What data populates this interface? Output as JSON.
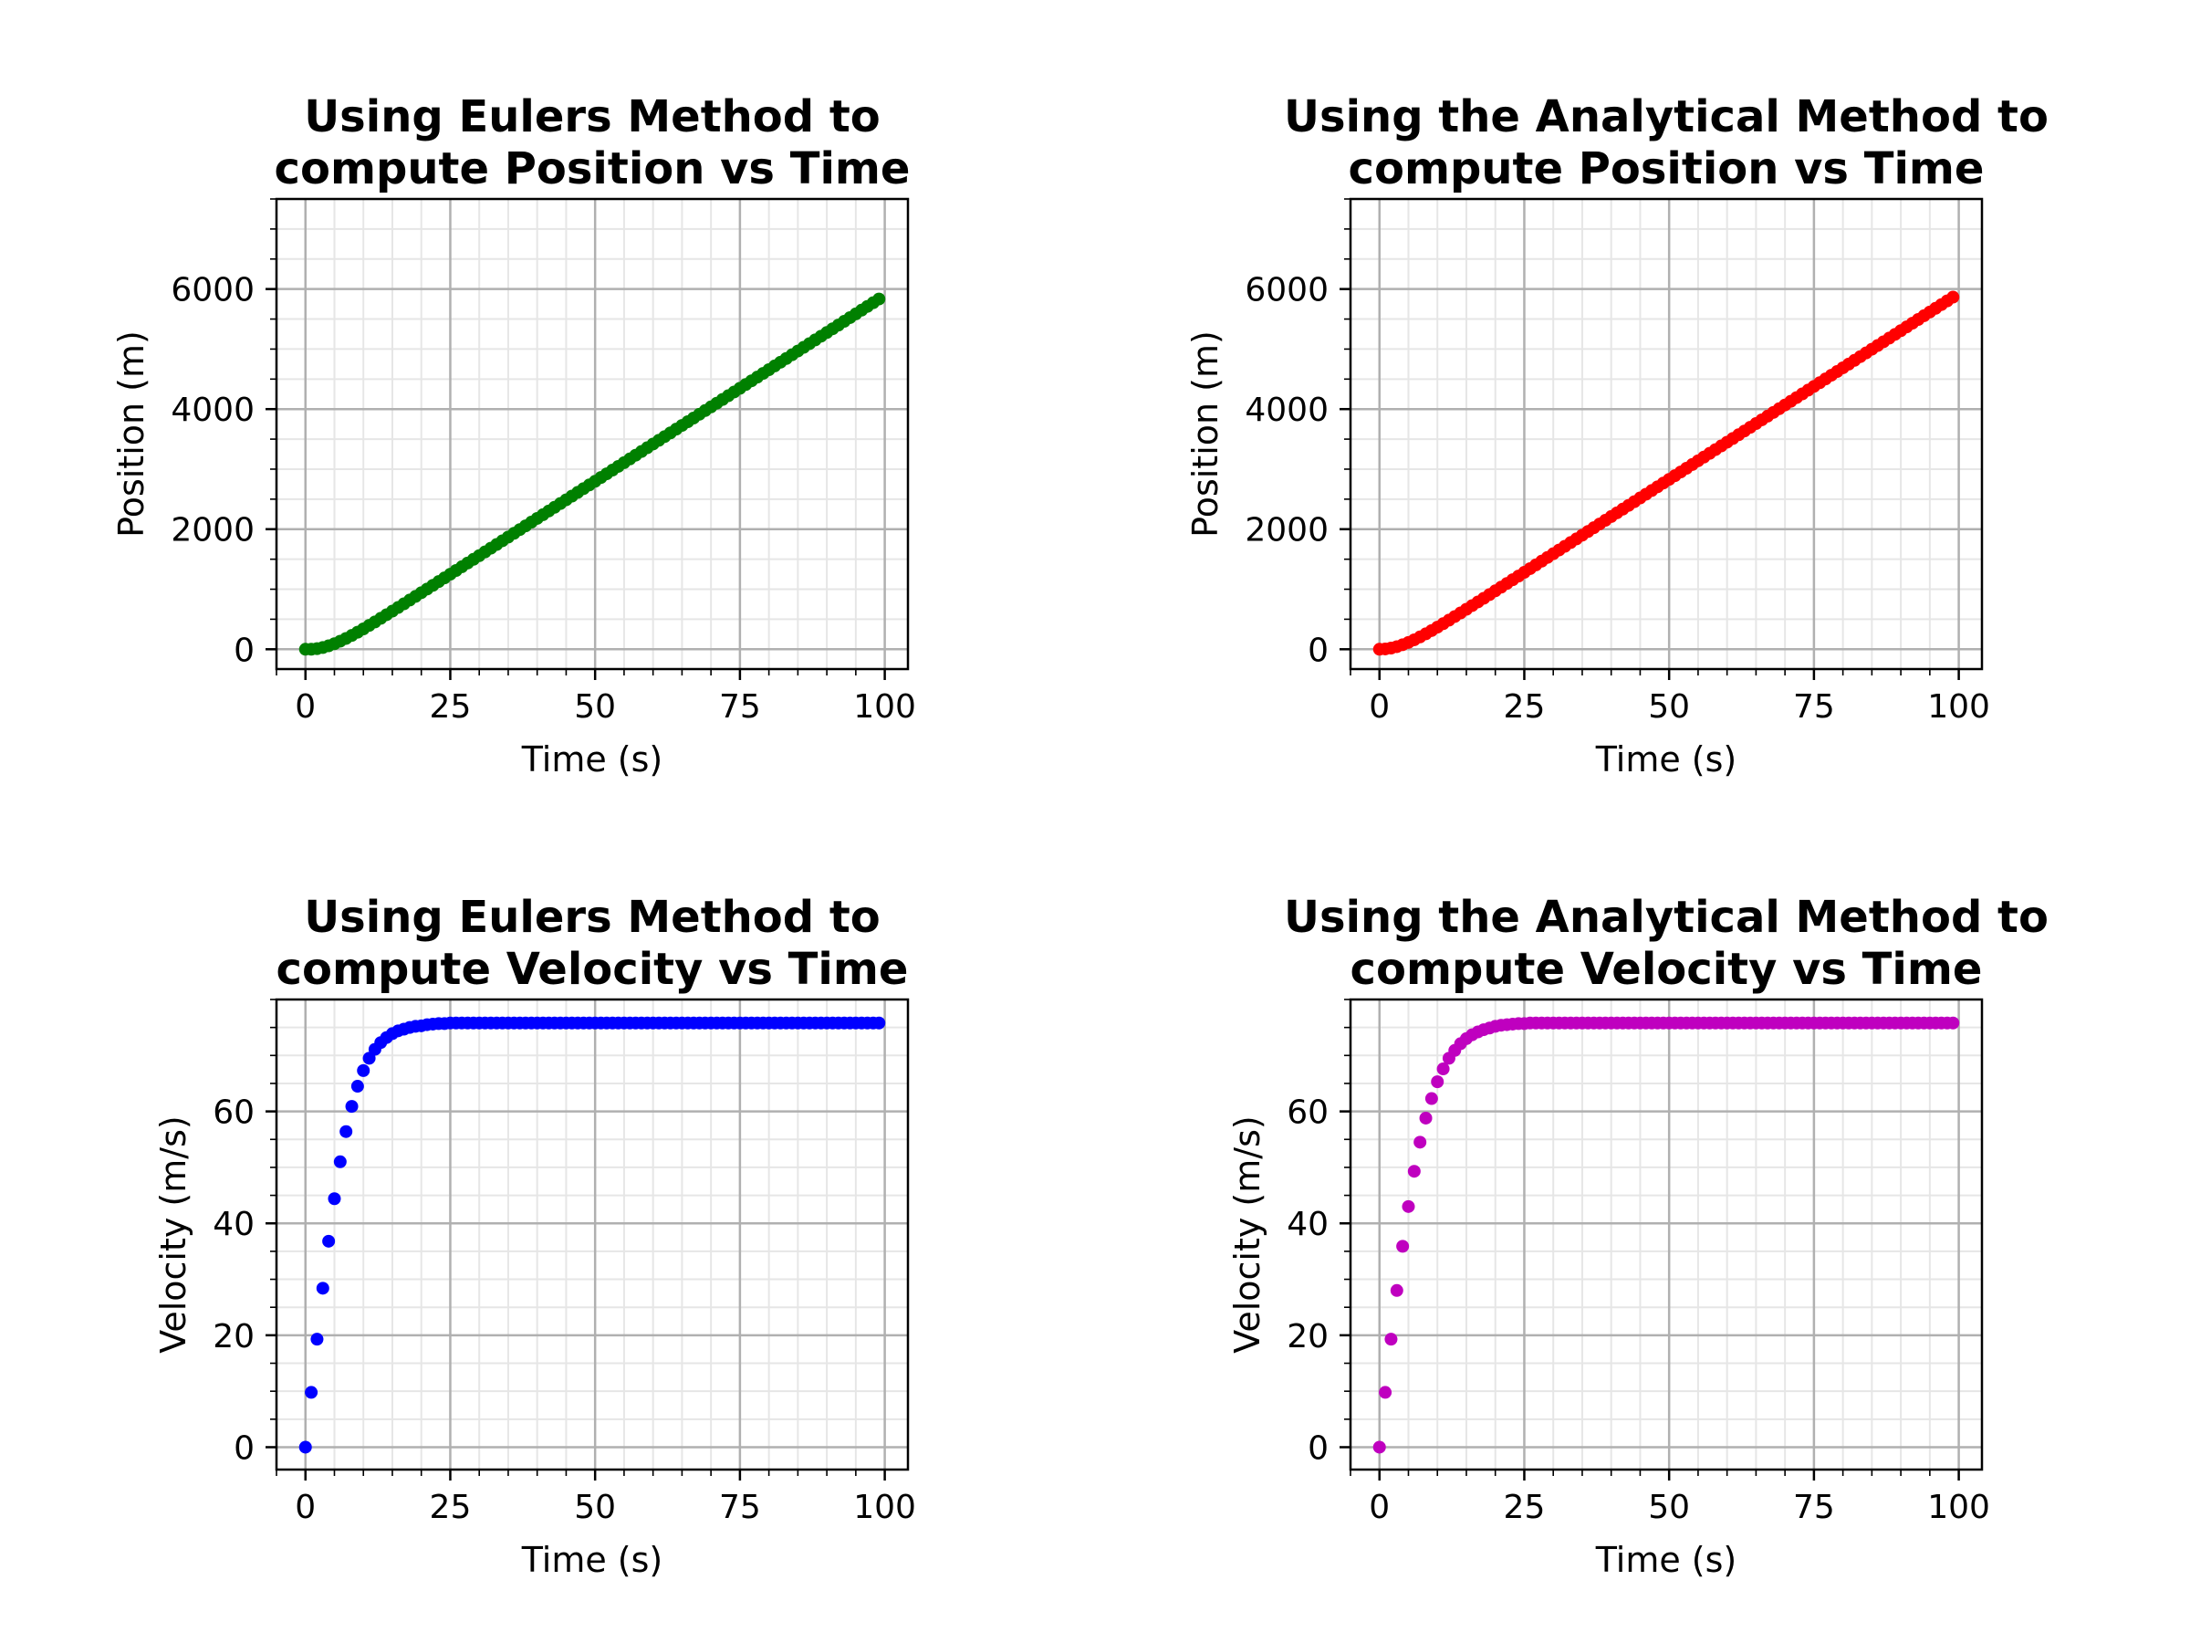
{
  "chart_data": [
    {
      "id": "euler-position",
      "type": "scatter",
      "title": [
        "Using Eulers Method to",
        "compute Position vs Time"
      ],
      "xlabel": "Time (s)",
      "ylabel": "Position (m)",
      "xlim": [
        -5,
        104
      ],
      "ylim": [
        -330,
        7500
      ],
      "xticks": [
        0,
        25,
        50,
        75,
        100
      ],
      "yticks": [
        0,
        2000,
        4000,
        6000
      ],
      "x_minor_step": 5,
      "y_minor_step": 500,
      "grid": true,
      "legend": "none",
      "color": "#008000",
      "x_range": [
        0,
        99
      ],
      "x_step": 1,
      "y_values": [
        0,
        0,
        10,
        29,
        57,
        92,
        134,
        180,
        230,
        284,
        339,
        397,
        455,
        515,
        575,
        635,
        696,
        757,
        819,
        880,
        942,
        1003,
        1065,
        1127,
        1188,
        1250,
        1312,
        1374,
        1436,
        1498,
        1559,
        1621,
        1683,
        1745,
        1807,
        1869,
        1931,
        1993,
        2055,
        2117,
        2179,
        2241,
        2303,
        2365,
        2427,
        2489,
        2551,
        2613,
        2675,
        2737,
        2798,
        2860,
        2922,
        2984,
        3046,
        3108,
        3170,
        3232,
        3294,
        3356,
        3418,
        3480,
        3542,
        3604,
        3666,
        3728,
        3790,
        3852,
        3914,
        3976,
        4037,
        4099,
        4161,
        4223,
        4285,
        4347,
        4409,
        4471,
        4533,
        4595,
        4657,
        4719,
        4781,
        4843,
        4905,
        4967,
        5029,
        5091,
        5153,
        5214,
        5276,
        5338,
        5400,
        5462,
        5524,
        5586,
        5648,
        5710,
        5772,
        5834
      ]
    },
    {
      "id": "analytical-position",
      "type": "scatter",
      "title": [
        "Using the Analytical Method to",
        "compute Position vs Time"
      ],
      "xlabel": "Time (s)",
      "ylabel": "Position (m)",
      "xlim": [
        -5,
        104
      ],
      "ylim": [
        -330,
        7500
      ],
      "xticks": [
        0,
        25,
        50,
        75,
        100
      ],
      "yticks": [
        0,
        2000,
        4000,
        6000
      ],
      "x_minor_step": 5,
      "y_minor_step": 500,
      "grid": true,
      "legend": "none",
      "color": "#ff0000",
      "x_range": [
        0,
        99
      ],
      "x_step": 1,
      "y_values": [
        0,
        5,
        19,
        43,
        75,
        113,
        157,
        205,
        257,
        311,
        368,
        426,
        485,
        545,
        605,
        666,
        727,
        788,
        849,
        911,
        973,
        1034,
        1096,
        1158,
        1219,
        1281,
        1343,
        1405,
        1467,
        1529,
        1591,
        1653,
        1715,
        1777,
        1838,
        1900,
        1962,
        2024,
        2086,
        2148,
        2210,
        2272,
        2334,
        2396,
        2458,
        2520,
        2582,
        2644,
        2706,
        2768,
        2829,
        2891,
        2953,
        3015,
        3077,
        3139,
        3201,
        3263,
        3325,
        3387,
        3449,
        3511,
        3573,
        3635,
        3697,
        3759,
        3821,
        3883,
        3945,
        4006,
        4068,
        4130,
        4192,
        4254,
        4316,
        4378,
        4440,
        4502,
        4564,
        4626,
        4688,
        4750,
        4812,
        4874,
        4936,
        4998,
        5059,
        5121,
        5183,
        5245,
        5307,
        5369,
        5431,
        5493,
        5555,
        5617,
        5679,
        5741,
        5803,
        5865
      ]
    },
    {
      "id": "euler-velocity",
      "type": "scatter",
      "title": [
        "Using Eulers Method to",
        "compute Velocity vs Time"
      ],
      "xlabel": "Time (s)",
      "ylabel": "Velocity (m/s)",
      "xlim": [
        -5,
        104
      ],
      "ylim": [
        -4,
        80
      ],
      "xticks": [
        0,
        25,
        50,
        75,
        100
      ],
      "yticks": [
        0,
        20,
        40,
        60
      ],
      "x_minor_step": 5,
      "y_minor_step": 5,
      "grid": true,
      "legend": "none",
      "color": "#0000ff",
      "x_range": [
        0,
        99
      ],
      "x_step": 1,
      "y_values": [
        0,
        9.8,
        19.3,
        28.4,
        36.8,
        44.4,
        51.0,
        56.4,
        60.9,
        64.5,
        67.3,
        69.5,
        71.1,
        72.3,
        73.2,
        73.9,
        74.4,
        74.7,
        75.0,
        75.2,
        75.3,
        75.5,
        75.6,
        75.7,
        75.7,
        75.8,
        75.8,
        75.8,
        75.8,
        75.8,
        75.8,
        75.8,
        75.8,
        75.8,
        75.8,
        75.8,
        75.8,
        75.8,
        75.8,
        75.8,
        75.8,
        75.8,
        75.8,
        75.8,
        75.8,
        75.8,
        75.8,
        75.8,
        75.8,
        75.8,
        75.8,
        75.8,
        75.8,
        75.8,
        75.8,
        75.8,
        75.8,
        75.8,
        75.8,
        75.8,
        75.8,
        75.8,
        75.8,
        75.8,
        75.8,
        75.8,
        75.8,
        75.8,
        75.8,
        75.8,
        75.8,
        75.8,
        75.8,
        75.8,
        75.8,
        75.8,
        75.8,
        75.8,
        75.8,
        75.8,
        75.8,
        75.8,
        75.8,
        75.8,
        75.8,
        75.8,
        75.8,
        75.8,
        75.8,
        75.8,
        75.8,
        75.8,
        75.8,
        75.8,
        75.8,
        75.8,
        75.8,
        75.8,
        75.8,
        75.8
      ]
    },
    {
      "id": "analytical-velocity",
      "type": "scatter",
      "title": [
        "Using the Analytical Method to",
        "compute Velocity vs Time"
      ],
      "xlabel": "Time (s)",
      "ylabel": "Velocity (m/s)",
      "xlim": [
        -5,
        104
      ],
      "ylim": [
        -4,
        80
      ],
      "xticks": [
        0,
        25,
        50,
        75,
        100
      ],
      "yticks": [
        0,
        20,
        40,
        60
      ],
      "x_minor_step": 5,
      "y_minor_step": 5,
      "grid": true,
      "legend": "none",
      "color": "#bf00bf",
      "x_range": [
        0,
        99
      ],
      "x_step": 1,
      "y_values": [
        0,
        9.8,
        19.3,
        28.0,
        35.9,
        43.0,
        49.3,
        54.5,
        58.8,
        62.3,
        65.3,
        67.6,
        69.5,
        70.9,
        72.1,
        73.0,
        73.7,
        74.2,
        74.6,
        74.9,
        75.2,
        75.4,
        75.5,
        75.6,
        75.7,
        75.7,
        75.8,
        75.8,
        75.8,
        75.8,
        75.8,
        75.8,
        75.8,
        75.8,
        75.8,
        75.8,
        75.8,
        75.8,
        75.8,
        75.8,
        75.8,
        75.8,
        75.8,
        75.8,
        75.8,
        75.8,
        75.8,
        75.8,
        75.8,
        75.8,
        75.8,
        75.8,
        75.8,
        75.8,
        75.8,
        75.8,
        75.8,
        75.8,
        75.8,
        75.8,
        75.8,
        75.8,
        75.8,
        75.8,
        75.8,
        75.8,
        75.8,
        75.8,
        75.8,
        75.8,
        75.8,
        75.8,
        75.8,
        75.8,
        75.8,
        75.8,
        75.8,
        75.8,
        75.8,
        75.8,
        75.8,
        75.8,
        75.8,
        75.8,
        75.8,
        75.8,
        75.8,
        75.8,
        75.8,
        75.8,
        75.8,
        75.8,
        75.8,
        75.8,
        75.8,
        75.8,
        75.8,
        75.8,
        75.8,
        75.8
      ]
    }
  ]
}
